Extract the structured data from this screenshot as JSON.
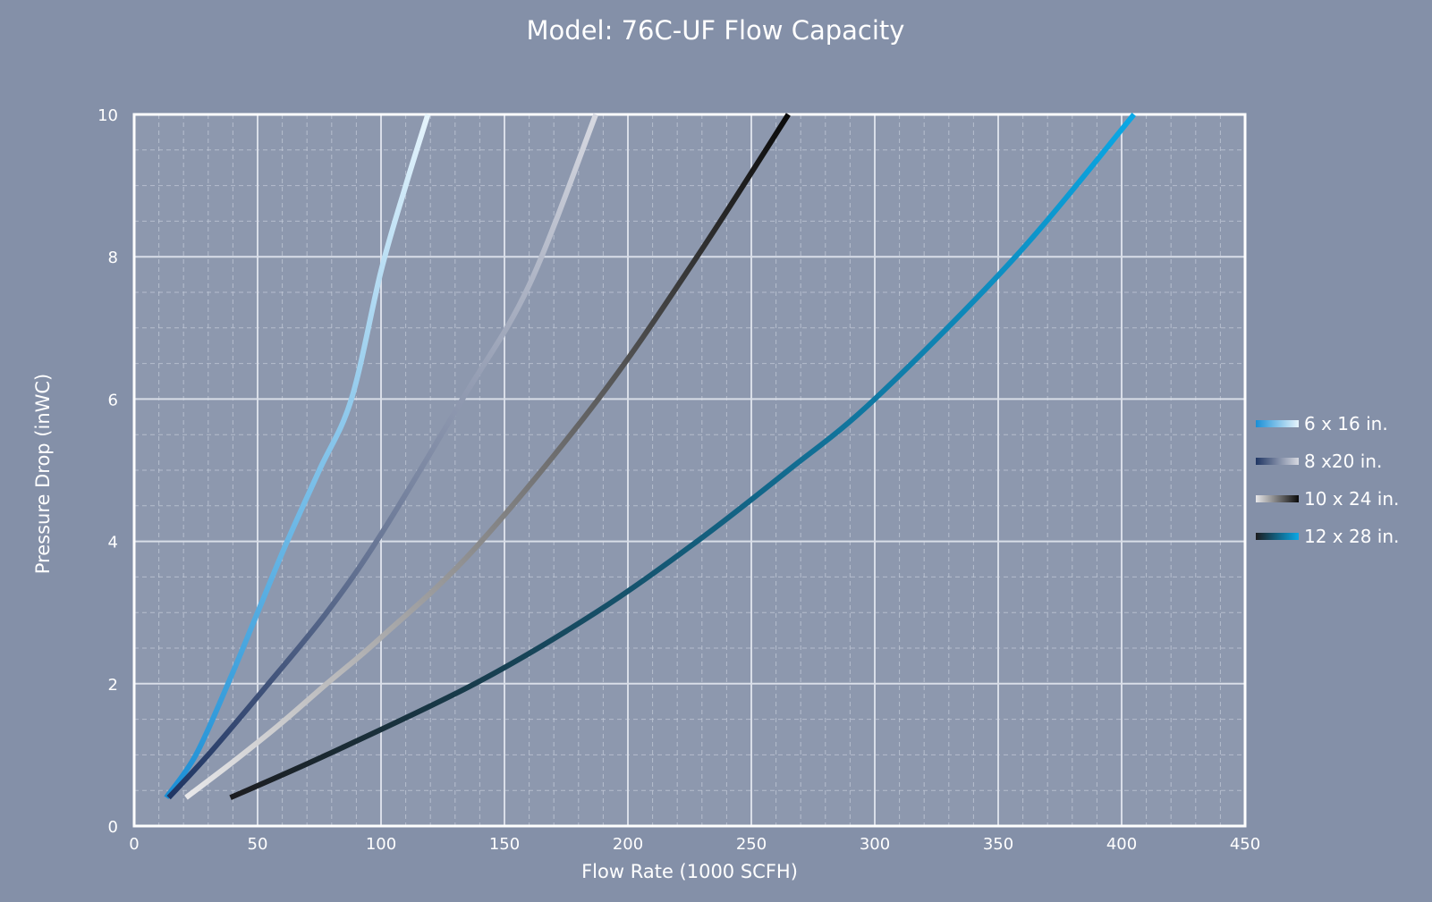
{
  "chart_data": {
    "type": "line",
    "title": "Model: 76C-UF Flow Capacity",
    "xlabel": "Flow Rate (1000 SCFH)",
    "ylabel": "Pressure Drop (inWC)",
    "xlim": [
      0,
      450
    ],
    "ylim": [
      0,
      10
    ],
    "x_ticks": [
      0,
      50,
      100,
      150,
      200,
      250,
      300,
      350,
      400,
      450
    ],
    "y_ticks": [
      0,
      2,
      4,
      6,
      8,
      10
    ],
    "grid": true,
    "legend_position": "right",
    "series": [
      {
        "name": "6 x 16 in.",
        "gradient": [
          "#1a8fd6",
          "#e6f4fc"
        ],
        "x": [
          13,
          25,
          38,
          50,
          62,
          75,
          88,
          100,
          110,
          119
        ],
        "y": [
          0.4,
          1.0,
          2.0,
          3.0,
          4.0,
          5.0,
          6.0,
          7.8,
          9.0,
          10.0
        ]
      },
      {
        "name": "8 x20 in.",
        "gradient": [
          "#1f3563",
          "#d7d9e1"
        ],
        "x": [
          14,
          30,
          52,
          78,
          100,
          133,
          160,
          187
        ],
        "y": [
          0.4,
          1.0,
          1.9,
          3.0,
          4.1,
          6.0,
          7.6,
          10.0
        ]
      },
      {
        "name": "10 x 24 in.",
        "gradient": [
          "#e8e8ea",
          "#0a0a0a"
        ],
        "x": [
          21,
          40,
          58,
          78,
          100,
          138,
          188,
          228,
          265
        ],
        "y": [
          0.4,
          0.9,
          1.4,
          2.0,
          2.65,
          3.9,
          6.0,
          8.0,
          10.0
        ]
      },
      {
        "name": "12 x 28 in.",
        "gradient": [
          "#1c1c1f",
          "#0aa8e6"
        ],
        "x": [
          39,
          78,
          138,
          187,
          228,
          265,
          300,
          357,
          405
        ],
        "y": [
          0.4,
          1.0,
          2.0,
          3.0,
          4.0,
          5.0,
          6.0,
          8.0,
          10.0
        ]
      }
    ]
  }
}
